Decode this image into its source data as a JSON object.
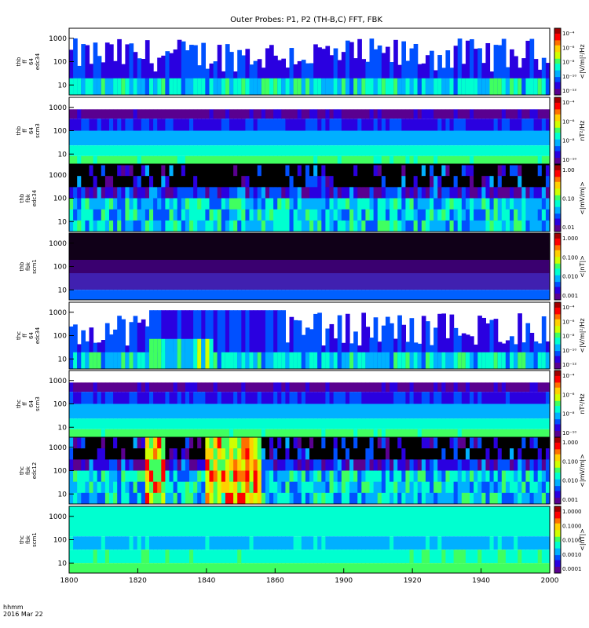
{
  "title": "Outer Probes: P1, P2 (TH-B,C) FFT, FBK",
  "time_caption": [
    "hhmm",
    "2016 Mar 22"
  ],
  "x_ticks": [
    "1800",
    "1820",
    "1840",
    "1860",
    "1900",
    "1920",
    "1940",
    "2000"
  ],
  "colormap": [
    "#5a0090",
    "#2a00e0",
    "#0050ff",
    "#00b0ff",
    "#00ffd0",
    "#40ff60",
    "#d0ff00",
    "#ffd000",
    "#ff7000",
    "#ff0000",
    "#a00000"
  ],
  "chart_data": [
    {
      "type": "heatmap",
      "ylabel": [
        "thb",
        "ff",
        "64",
        "edc34"
      ],
      "y_ticks": [
        "10",
        "100",
        "1000"
      ],
      "cbar_label": "<|V/m|²/Hz",
      "cbar_ticks": [
        "10⁻⁴",
        "10⁻⁶",
        "10⁻⁸",
        "10⁻¹⁰",
        "10⁻¹²"
      ],
      "style": "edc_ff"
    },
    {
      "type": "heatmap",
      "ylabel": [
        "thb",
        "ff",
        "64",
        "scm3"
      ],
      "y_ticks": [
        "10",
        "100",
        "1000"
      ],
      "cbar_label": "nT²/Hz",
      "cbar_ticks": [
        "10⁻⁴",
        "10⁻⁶",
        "10⁻⁸",
        "10⁻¹⁰"
      ],
      "style": "scm_ff"
    },
    {
      "type": "heatmap",
      "ylabel": [
        "thb",
        "fbk",
        "edc34"
      ],
      "y_ticks": [
        "10",
        "100",
        "1000"
      ],
      "cbar_label": "<|mV/m|>",
      "cbar_ticks": [
        "1.00",
        "0.10",
        "0.01"
      ],
      "style": "edc_fbk"
    },
    {
      "type": "heatmap",
      "ylabel": [
        "thb",
        "fbk",
        "scm1"
      ],
      "y_ticks": [
        "10",
        "100",
        "1000"
      ],
      "cbar_label": "<|nT|>",
      "cbar_ticks": [
        "1.000",
        "0.100",
        "0.010",
        "0.001"
      ],
      "style": "scm_fbk"
    },
    {
      "type": "heatmap",
      "ylabel": [
        "thc",
        "ff",
        "64",
        "edc34"
      ],
      "y_ticks": [
        "10",
        "100",
        "1000"
      ],
      "cbar_label": "<|V/m|²/Hz",
      "cbar_ticks": [
        "10⁻⁴",
        "10⁻⁶",
        "10⁻⁸",
        "10⁻¹⁰",
        "10⁻¹²"
      ],
      "style": "edc_ff_c"
    },
    {
      "type": "heatmap",
      "ylabel": [
        "thc",
        "ff",
        "64",
        "scm3"
      ],
      "y_ticks": [
        "10",
        "100",
        "1000"
      ],
      "cbar_label": "nT²/Hz",
      "cbar_ticks": [
        "10⁻⁴",
        "10⁻⁶",
        "10⁻⁸",
        "10⁻¹⁰"
      ],
      "style": "scm_ff"
    },
    {
      "type": "heatmap",
      "ylabel": [
        "thc",
        "fbk",
        "edc12"
      ],
      "y_ticks": [
        "10",
        "100",
        "1000"
      ],
      "cbar_label": "<|mV/m|>",
      "cbar_ticks": [
        "1.000",
        "0.100",
        "0.010",
        "0.001"
      ],
      "style": "edc_fbk_c"
    },
    {
      "type": "heatmap",
      "ylabel": [
        "thc",
        "fbk",
        "scm1"
      ],
      "y_ticks": [
        "10",
        "100",
        "1000"
      ],
      "cbar_label": "<|nT|>",
      "cbar_ticks": [
        "1.0000",
        "0.1000",
        "0.0100",
        "0.0010",
        "0.0001"
      ],
      "style": "scm_fbk_c"
    }
  ]
}
